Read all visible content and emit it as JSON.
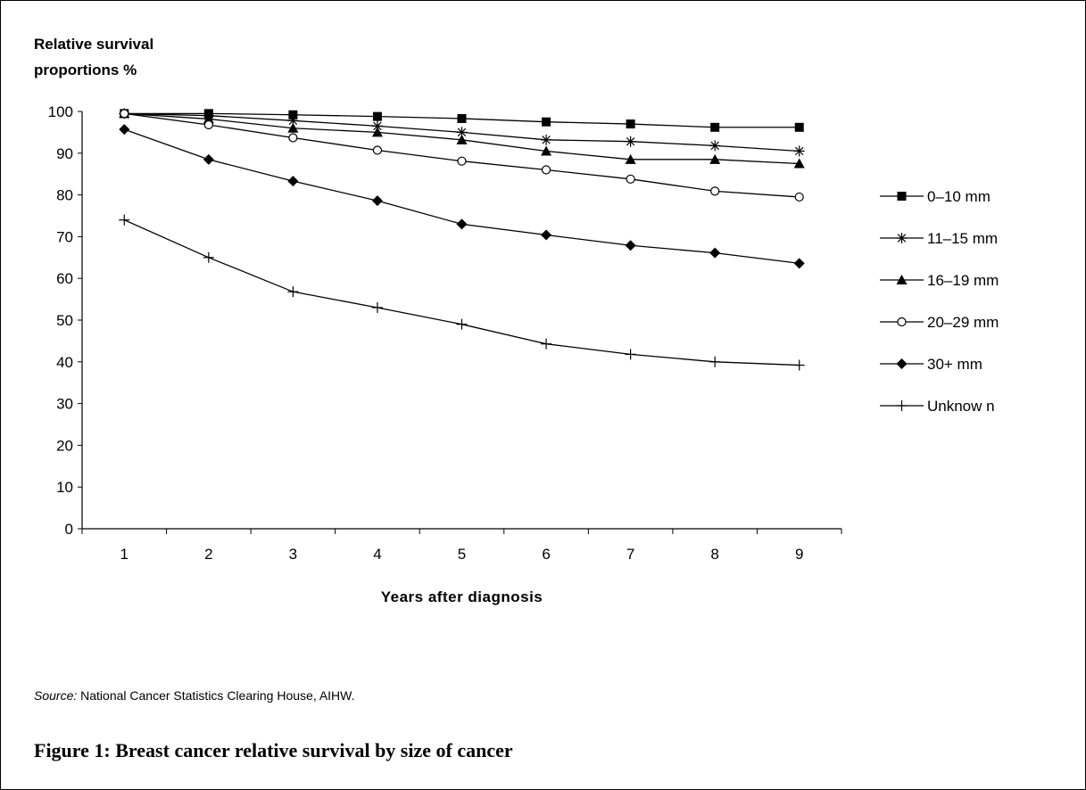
{
  "chart_data": {
    "type": "line",
    "title": "",
    "ylabel_lines": [
      "Relative survival",
      "proportions %"
    ],
    "xlabel": "Years after diagnosis",
    "x": [
      1,
      2,
      3,
      4,
      5,
      6,
      7,
      8,
      9
    ],
    "ylim": [
      0,
      100
    ],
    "yticks": [
      0,
      10,
      20,
      30,
      40,
      50,
      60,
      70,
      80,
      90,
      100
    ],
    "grid": false,
    "legend_position": "right",
    "series": [
      {
        "name": "0–10 mm",
        "marker": "square",
        "values": [
          99.5,
          99.5,
          99.2,
          98.8,
          98.3,
          97.5,
          97.0,
          96.2,
          96.2
        ]
      },
      {
        "name": "11–15 mm",
        "marker": "asterisk",
        "values": [
          99.5,
          99.0,
          97.8,
          96.5,
          95.0,
          93.2,
          92.8,
          91.8,
          90.5
        ]
      },
      {
        "name": "16–19 mm",
        "marker": "triangle",
        "values": [
          99.5,
          98.2,
          96.0,
          95.0,
          93.2,
          90.5,
          88.5,
          88.5,
          87.5
        ]
      },
      {
        "name": "20–29 mm",
        "marker": "circle",
        "values": [
          99.5,
          96.8,
          93.7,
          90.7,
          88.1,
          86.0,
          83.8,
          80.9,
          79.5
        ]
      },
      {
        "name": "30+ mm",
        "marker": "diamond",
        "values": [
          95.7,
          88.5,
          83.3,
          78.6,
          73.0,
          70.4,
          67.9,
          66.1,
          63.6
        ]
      },
      {
        "name": "Unknow n",
        "marker": "plus",
        "values": [
          74.0,
          65.0,
          56.8,
          53.0,
          49.0,
          44.3,
          41.8,
          40.0,
          39.2
        ]
      }
    ]
  },
  "source": {
    "label": "Source:",
    "text": " National Cancer Statistics Clearing House, AIHW."
  },
  "caption": "Figure 1: Breast cancer relative survival by size of cancer"
}
